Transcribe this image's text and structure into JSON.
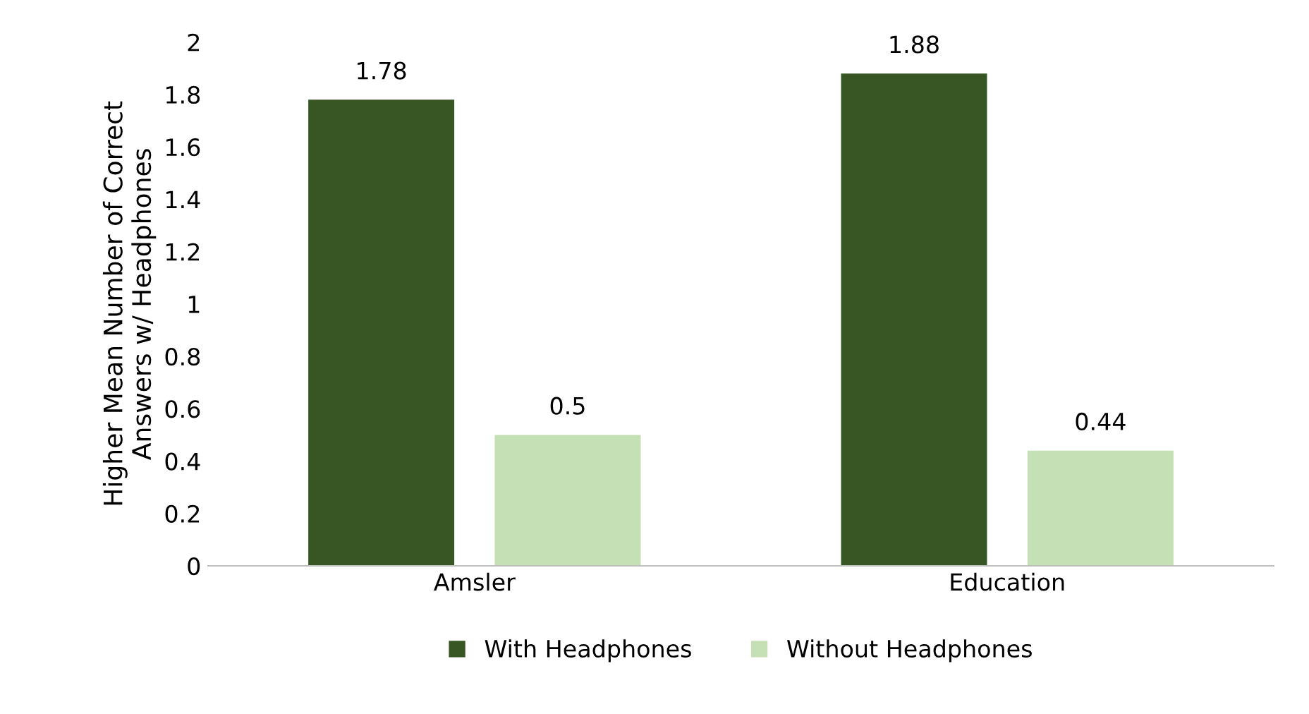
{
  "chart_data": {
    "type": "bar",
    "ylabel": "Higher Mean Number of Correct\nAnswers w/ Headphones",
    "categories": [
      "Amsler",
      "Education"
    ],
    "series": [
      {
        "name": "With Headphones",
        "color": "#375623",
        "values": [
          1.78,
          1.88
        ]
      },
      {
        "name": "Without Headphones",
        "color": "#c5e0b4",
        "values": [
          0.5,
          0.44
        ]
      }
    ],
    "ylim": [
      0,
      2
    ],
    "yticks": [
      0,
      0.2,
      0.4,
      0.6,
      0.8,
      1,
      1.2,
      1.4,
      1.6,
      1.8,
      2
    ],
    "data_labels": true,
    "grid": false,
    "legend": "bottom"
  }
}
